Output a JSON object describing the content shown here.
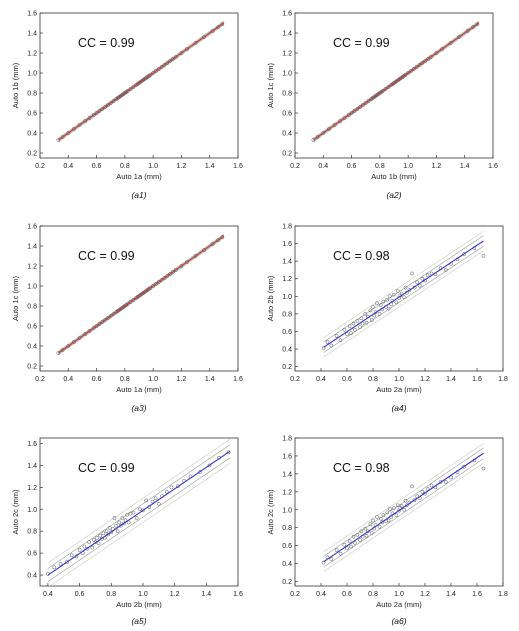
{
  "chart_data": [
    {
      "type": "scatter",
      "panel_label": "(a1)",
      "cc_label": "CC = 0.99",
      "xlabel": "Auto 1a (mm)",
      "ylabel": "Auto 1b (mm)",
      "xlim": [
        0.2,
        1.6
      ],
      "ylim": [
        0.15,
        1.6
      ],
      "xticks": [
        "0.2",
        "0.4",
        "0.6",
        "0.8",
        "1.0",
        "1.2",
        "1.4",
        "1.6"
      ],
      "yticks": [
        "0.2",
        "0.4",
        "0.6",
        "0.8",
        "1.0",
        "1.2",
        "1.4",
        "1.6"
      ],
      "fit_line": {
        "x": [
          0.33,
          1.5
        ],
        "y": [
          0.33,
          1.5
        ],
        "color": "#c0392b"
      },
      "series": [
        {
          "x": [
            0.33,
            0.36,
            0.4,
            0.44,
            0.48,
            0.52,
            0.55,
            0.58,
            0.6,
            0.62,
            0.64,
            0.66,
            0.68,
            0.7,
            0.72,
            0.74,
            0.75,
            0.76,
            0.77,
            0.78,
            0.79,
            0.8,
            0.81,
            0.82,
            0.84,
            0.86,
            0.88,
            0.89,
            0.9,
            0.91,
            0.92,
            0.93,
            0.94,
            0.95,
            0.96,
            0.97,
            0.98,
            1.0,
            1.02,
            1.04,
            1.06,
            1.08,
            1.1,
            1.12,
            1.14,
            1.16,
            1.2,
            1.24,
            1.3,
            1.36,
            1.42,
            1.46,
            1.49
          ],
          "y": [
            0.33,
            0.36,
            0.4,
            0.44,
            0.48,
            0.52,
            0.55,
            0.58,
            0.6,
            0.62,
            0.64,
            0.66,
            0.68,
            0.7,
            0.72,
            0.74,
            0.75,
            0.76,
            0.77,
            0.78,
            0.79,
            0.8,
            0.81,
            0.82,
            0.84,
            0.86,
            0.88,
            0.89,
            0.9,
            0.91,
            0.92,
            0.93,
            0.94,
            0.95,
            0.96,
            0.97,
            0.98,
            1.0,
            1.02,
            1.04,
            1.06,
            1.08,
            1.1,
            1.12,
            1.14,
            1.16,
            1.2,
            1.24,
            1.3,
            1.36,
            1.42,
            1.46,
            1.49
          ]
        }
      ]
    },
    {
      "type": "scatter",
      "panel_label": "(a2)",
      "cc_label": "CC = 0.99",
      "xlabel": "Auto 1b (mm)",
      "ylabel": "Auto 1c (mm)",
      "xlim": [
        0.2,
        1.6
      ],
      "ylim": [
        0.15,
        1.6
      ],
      "xticks": [
        "0.2",
        "0.4",
        "0.6",
        "0.8",
        "1.0",
        "1.2",
        "1.4",
        "1.6"
      ],
      "yticks": [
        "0.2",
        "0.4",
        "0.6",
        "0.8",
        "1.0",
        "1.2",
        "1.4",
        "1.6"
      ],
      "fit_line": {
        "x": [
          0.33,
          1.5
        ],
        "y": [
          0.33,
          1.5
        ],
        "color": "#c0392b"
      },
      "series": [
        {
          "x": [
            0.33,
            0.36,
            0.4,
            0.44,
            0.48,
            0.52,
            0.55,
            0.58,
            0.6,
            0.62,
            0.64,
            0.66,
            0.68,
            0.7,
            0.72,
            0.74,
            0.75,
            0.76,
            0.77,
            0.78,
            0.79,
            0.8,
            0.81,
            0.82,
            0.84,
            0.86,
            0.88,
            0.89,
            0.9,
            0.91,
            0.92,
            0.93,
            0.94,
            0.95,
            0.96,
            0.97,
            0.98,
            1.0,
            1.02,
            1.04,
            1.06,
            1.08,
            1.1,
            1.12,
            1.14,
            1.16,
            1.2,
            1.24,
            1.3,
            1.36,
            1.42,
            1.46,
            1.49
          ],
          "y": [
            0.33,
            0.36,
            0.4,
            0.44,
            0.48,
            0.52,
            0.55,
            0.58,
            0.6,
            0.62,
            0.64,
            0.66,
            0.68,
            0.7,
            0.72,
            0.74,
            0.75,
            0.76,
            0.77,
            0.78,
            0.79,
            0.8,
            0.81,
            0.82,
            0.84,
            0.86,
            0.88,
            0.89,
            0.9,
            0.91,
            0.92,
            0.93,
            0.94,
            0.95,
            0.96,
            0.97,
            0.98,
            1.0,
            1.02,
            1.04,
            1.06,
            1.08,
            1.1,
            1.12,
            1.14,
            1.16,
            1.2,
            1.24,
            1.3,
            1.36,
            1.42,
            1.46,
            1.49
          ]
        }
      ]
    },
    {
      "type": "scatter",
      "panel_label": "(a3)",
      "cc_label": "CC = 0.99",
      "xlabel": "Auto 1a (mm)",
      "ylabel": "Auto 1c (mm)",
      "xlim": [
        0.2,
        1.6
      ],
      "ylim": [
        0.15,
        1.6
      ],
      "xticks": [
        "0.2",
        "0.4",
        "0.6",
        "0.8",
        "1.0",
        "1.2",
        "1.4",
        "1.6"
      ],
      "yticks": [
        "0.2",
        "0.4",
        "0.6",
        "0.8",
        "1.0",
        "1.2",
        "1.4",
        "1.6"
      ],
      "fit_line": {
        "x": [
          0.33,
          1.5
        ],
        "y": [
          0.33,
          1.5
        ],
        "color": "#c0392b"
      },
      "series": [
        {
          "x": [
            0.33,
            0.36,
            0.4,
            0.44,
            0.48,
            0.52,
            0.55,
            0.58,
            0.6,
            0.62,
            0.64,
            0.66,
            0.68,
            0.7,
            0.72,
            0.74,
            0.75,
            0.76,
            0.77,
            0.78,
            0.79,
            0.8,
            0.81,
            0.82,
            0.84,
            0.86,
            0.88,
            0.89,
            0.9,
            0.91,
            0.92,
            0.93,
            0.94,
            0.95,
            0.96,
            0.97,
            0.98,
            1.0,
            1.02,
            1.04,
            1.06,
            1.08,
            1.1,
            1.12,
            1.14,
            1.16,
            1.2,
            1.24,
            1.3,
            1.36,
            1.42,
            1.46,
            1.49
          ],
          "y": [
            0.33,
            0.36,
            0.4,
            0.44,
            0.48,
            0.52,
            0.55,
            0.58,
            0.6,
            0.62,
            0.64,
            0.66,
            0.68,
            0.7,
            0.72,
            0.74,
            0.75,
            0.76,
            0.77,
            0.78,
            0.79,
            0.8,
            0.81,
            0.82,
            0.84,
            0.86,
            0.88,
            0.89,
            0.9,
            0.91,
            0.92,
            0.93,
            0.94,
            0.95,
            0.96,
            0.97,
            0.98,
            1.0,
            1.02,
            1.04,
            1.06,
            1.08,
            1.1,
            1.12,
            1.14,
            1.16,
            1.2,
            1.24,
            1.3,
            1.36,
            1.42,
            1.46,
            1.49
          ]
        }
      ]
    },
    {
      "type": "scatter",
      "panel_label": "(a4)",
      "cc_label": "CC = 0.98",
      "xlabel": "Auto 2a (mm)",
      "ylabel": "Auto 2b (mm)",
      "xlim": [
        0.2,
        1.8
      ],
      "ylim": [
        0.15,
        1.8
      ],
      "xticks": [
        "0.2",
        "0.4",
        "0.6",
        "0.8",
        "1.0",
        "1.2",
        "1.4",
        "1.6",
        "1.8"
      ],
      "yticks": [
        "0.2",
        "0.4",
        "0.6",
        "0.8",
        "1.0",
        "1.2",
        "1.4",
        "1.6",
        "1.8"
      ],
      "fit_line": {
        "x": [
          0.42,
          1.65
        ],
        "y": [
          0.42,
          1.63
        ],
        "color": "#3333cc"
      },
      "series": [
        {
          "x": [
            0.42,
            0.45,
            0.48,
            0.52,
            0.55,
            0.58,
            0.6,
            0.62,
            0.63,
            0.65,
            0.66,
            0.68,
            0.7,
            0.71,
            0.72,
            0.74,
            0.75,
            0.76,
            0.78,
            0.79,
            0.8,
            0.81,
            0.82,
            0.83,
            0.85,
            0.86,
            0.87,
            0.88,
            0.9,
            0.91,
            0.92,
            0.93,
            0.94,
            0.95,
            0.96,
            0.98,
            0.99,
            1.0,
            1.01,
            1.02,
            1.04,
            1.05,
            1.06,
            1.08,
            1.1,
            1.12,
            1.14,
            1.16,
            1.18,
            1.2,
            1.22,
            1.25,
            1.28,
            1.32,
            1.36,
            1.4,
            1.45,
            1.5,
            1.58,
            1.65
          ],
          "y": [
            0.41,
            0.48,
            0.44,
            0.55,
            0.5,
            0.62,
            0.57,
            0.66,
            0.58,
            0.69,
            0.62,
            0.72,
            0.65,
            0.75,
            0.69,
            0.8,
            0.7,
            0.77,
            0.84,
            0.73,
            0.88,
            0.78,
            0.82,
            0.92,
            0.8,
            0.9,
            0.85,
            0.94,
            0.88,
            0.96,
            0.86,
            1.0,
            0.91,
            0.95,
            1.02,
            0.93,
            1.06,
            0.98,
            1.01,
            1.03,
            0.99,
            1.1,
            1.04,
            1.07,
            1.26,
            1.1,
            1.16,
            1.12,
            1.2,
            1.18,
            1.24,
            1.26,
            1.25,
            1.32,
            1.3,
            1.37,
            1.42,
            1.48,
            1.55,
            1.46
          ]
        }
      ]
    },
    {
      "type": "scatter",
      "panel_label": "(a5)",
      "cc_label": "CC = 0.99",
      "xlabel": "Auto 2b (mm)",
      "ylabel": "Auto 2c (mm)",
      "xlim": [
        0.35,
        1.6
      ],
      "ylim": [
        0.3,
        1.65
      ],
      "xticks": [
        "0.4",
        "0.6",
        "0.8",
        "1.0",
        "1.2",
        "1.4",
        "1.6"
      ],
      "yticks": [
        "0.4",
        "0.6",
        "0.8",
        "1.0",
        "1.2",
        "1.4",
        "1.6"
      ],
      "fit_line": {
        "x": [
          0.4,
          1.55
        ],
        "y": [
          0.4,
          1.53
        ],
        "color": "#3333cc"
      },
      "series": [
        {
          "x": [
            0.4,
            0.44,
            0.48,
            0.52,
            0.55,
            0.58,
            0.6,
            0.62,
            0.63,
            0.65,
            0.66,
            0.68,
            0.69,
            0.7,
            0.71,
            0.72,
            0.73,
            0.74,
            0.75,
            0.76,
            0.77,
            0.78,
            0.79,
            0.8,
            0.81,
            0.82,
            0.83,
            0.84,
            0.85,
            0.86,
            0.87,
            0.88,
            0.89,
            0.9,
            0.91,
            0.92,
            0.94,
            0.96,
            0.98,
            1.0,
            1.02,
            1.04,
            1.06,
            1.08,
            1.1,
            1.12,
            1.15,
            1.18,
            1.22,
            1.26,
            1.3,
            1.36,
            1.42,
            1.48,
            1.54
          ],
          "y": [
            0.41,
            0.47,
            0.5,
            0.52,
            0.58,
            0.57,
            0.63,
            0.6,
            0.66,
            0.64,
            0.7,
            0.65,
            0.72,
            0.7,
            0.74,
            0.69,
            0.76,
            0.73,
            0.78,
            0.74,
            0.8,
            0.77,
            0.83,
            0.79,
            0.82,
            0.92,
            0.85,
            0.8,
            0.88,
            0.85,
            0.92,
            0.87,
            0.9,
            0.95,
            0.88,
            0.96,
            0.97,
            0.92,
            1.0,
            0.99,
            1.08,
            1.02,
            1.07,
            1.1,
            1.05,
            1.12,
            1.16,
            1.2,
            1.21,
            1.26,
            1.3,
            1.34,
            1.4,
            1.47,
            1.52
          ]
        }
      ]
    },
    {
      "type": "scatter",
      "panel_label": "(a6)",
      "cc_label": "CC = 0.98",
      "xlabel": "Auto 2a (mm)",
      "ylabel": "Auto 2c (mm)",
      "xlim": [
        0.2,
        1.8
      ],
      "ylim": [
        0.15,
        1.8
      ],
      "xticks": [
        "0.2",
        "0.4",
        "0.6",
        "0.8",
        "1.0",
        "1.2",
        "1.4",
        "1.6",
        "1.8"
      ],
      "yticks": [
        "0.2",
        "0.4",
        "0.6",
        "0.8",
        "1.0",
        "1.2",
        "1.4",
        "1.6",
        "1.8"
      ],
      "fit_line": {
        "x": [
          0.42,
          1.65
        ],
        "y": [
          0.42,
          1.63
        ],
        "color": "#3333cc"
      },
      "series": [
        {
          "x": [
            0.42,
            0.45,
            0.48,
            0.52,
            0.55,
            0.58,
            0.6,
            0.62,
            0.63,
            0.65,
            0.66,
            0.68,
            0.7,
            0.71,
            0.72,
            0.74,
            0.75,
            0.76,
            0.78,
            0.79,
            0.8,
            0.81,
            0.82,
            0.83,
            0.85,
            0.86,
            0.87,
            0.88,
            0.9,
            0.91,
            0.92,
            0.93,
            0.94,
            0.95,
            0.96,
            0.98,
            0.99,
            1.0,
            1.01,
            1.02,
            1.04,
            1.05,
            1.06,
            1.08,
            1.1,
            1.12,
            1.14,
            1.16,
            1.18,
            1.2,
            1.22,
            1.25,
            1.28,
            1.32,
            1.36,
            1.4,
            1.45,
            1.5,
            1.58,
            1.65
          ],
          "y": [
            0.41,
            0.47,
            0.45,
            0.55,
            0.51,
            0.61,
            0.57,
            0.65,
            0.59,
            0.7,
            0.63,
            0.72,
            0.66,
            0.76,
            0.7,
            0.79,
            0.71,
            0.76,
            0.84,
            0.74,
            0.88,
            0.79,
            0.83,
            0.92,
            0.81,
            0.9,
            0.86,
            0.94,
            0.87,
            0.97,
            0.88,
            1.01,
            0.92,
            0.96,
            1.02,
            0.94,
            1.05,
            0.99,
            1.02,
            1.04,
            1.0,
            1.1,
            1.05,
            1.08,
            1.26,
            1.11,
            1.15,
            1.13,
            1.2,
            1.18,
            1.23,
            1.27,
            1.25,
            1.31,
            1.31,
            1.36,
            1.42,
            1.48,
            1.55,
            1.46
          ]
        }
      ]
    }
  ]
}
